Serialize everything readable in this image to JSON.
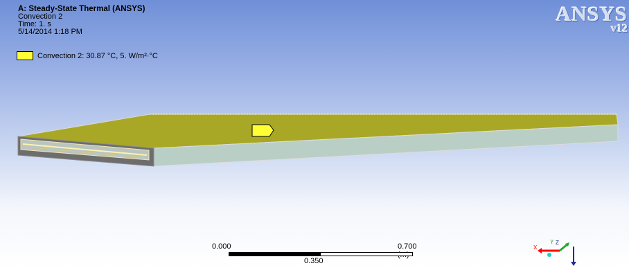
{
  "info": {
    "title": "A: Steady-State Thermal (ANSYS)",
    "load_name": "Convection 2",
    "time": "Time: 1. s",
    "date": "5/14/2014 1:18 PM"
  },
  "legend": {
    "label": "Convection 2: 30.87 °C, 5. W/m²·°C",
    "swatch_color": "#ffff33"
  },
  "logo": {
    "brand": "ANSYS",
    "version": "v12"
  },
  "model": {
    "top_face_color": "#a9a826",
    "side_face_color": "#b9cfc5",
    "end_face_color": "#666666"
  },
  "scale": {
    "left": "0.000",
    "right": "0.700 (m)",
    "middle": "0.350"
  },
  "triad": {
    "x_label": "X",
    "y_label": "Y",
    "z_label": "Z"
  }
}
